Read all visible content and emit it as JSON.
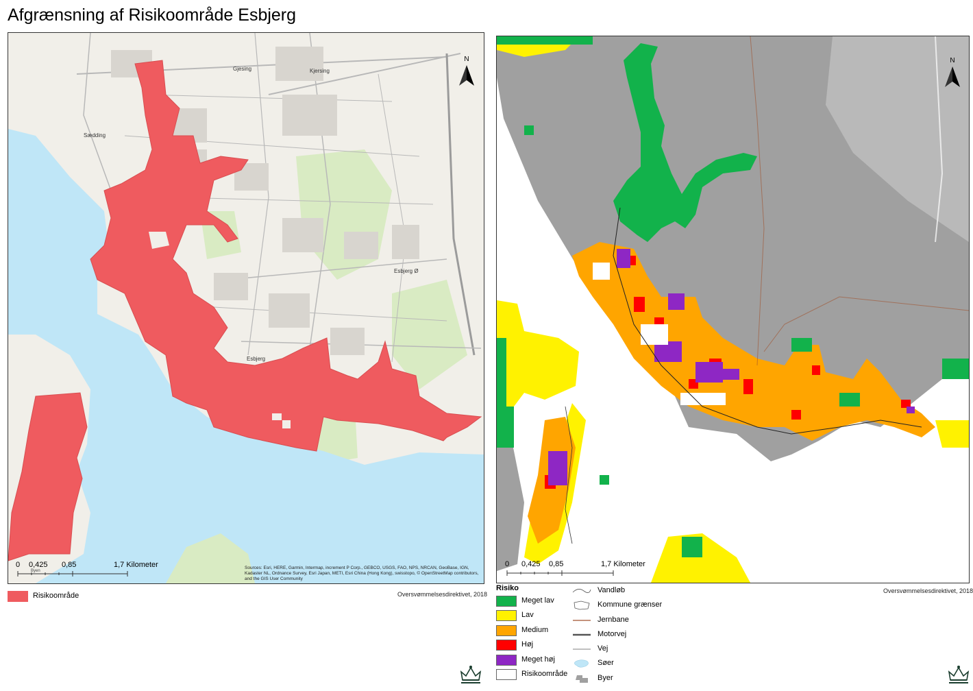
{
  "title": "Afgrænsning af Risikoområde Esbjerg",
  "left_map": {
    "place_labels": [
      "Gjesing",
      "Kjersing",
      "Sædding",
      "Esbjerg Ø",
      "Esbjerg",
      "Byen"
    ],
    "north_label": "N",
    "scale": {
      "ticks": [
        "0",
        "0,425",
        "0,85",
        "1,7 Kilometer"
      ],
      "unit_small": "Byen"
    },
    "attribution": "Sources: Esri, HERE, Garmin, Intermap, increment P Corp., GEBCO, USGS, FAO, NPS, NRCAN, GeoBase, IGN, Kadaster NL, Ordnance Survey, Esri Japan, METI, Esri China (Hong Kong), swisstopo, © OpenStreetMap contributors, and the GIS User Community",
    "legend": {
      "label": "Risikoområde",
      "color": "#ef5b5f"
    },
    "credit": "Oversvømmelsesdirektivet, 2018"
  },
  "right_map": {
    "north_label": "N",
    "scale": {
      "ticks": [
        "0",
        "0,425",
        "0,85",
        "1,7 Kilometer"
      ]
    },
    "credit": "Oversvømmelsesdirektivet, 2018",
    "risk_legend": {
      "title": "Risiko",
      "items": [
        {
          "label": "Meget lav",
          "color": "#12b24b"
        },
        {
          "label": "Lav",
          "color": "#fff200"
        },
        {
          "label": "Medium",
          "color": "#ffa500"
        },
        {
          "label": "Høj",
          "color": "#ff0000"
        },
        {
          "label": "Meget høj",
          "color": "#8e27c4"
        },
        {
          "label": "Risikoområde",
          "color": "#ffffff"
        }
      ]
    },
    "feature_legend": {
      "items": [
        {
          "label": "Vandløb",
          "icon": "stream-line-icon"
        },
        {
          "label": "Kommune grænser",
          "icon": "municipality-border-icon"
        },
        {
          "label": "Jernbane",
          "icon": "railway-line-icon"
        },
        {
          "label": "Motorvej",
          "icon": "motorway-line-icon"
        },
        {
          "label": "Vej",
          "icon": "road-line-icon"
        },
        {
          "label": "Søer",
          "icon": "lake-icon"
        },
        {
          "label": "Byer",
          "icon": "city-icon"
        }
      ]
    }
  },
  "colors": {
    "water": "#bfe6f7",
    "land": "#f1efe9",
    "park": "#d9ebc3",
    "urban_gray": "#a0a0a0"
  }
}
